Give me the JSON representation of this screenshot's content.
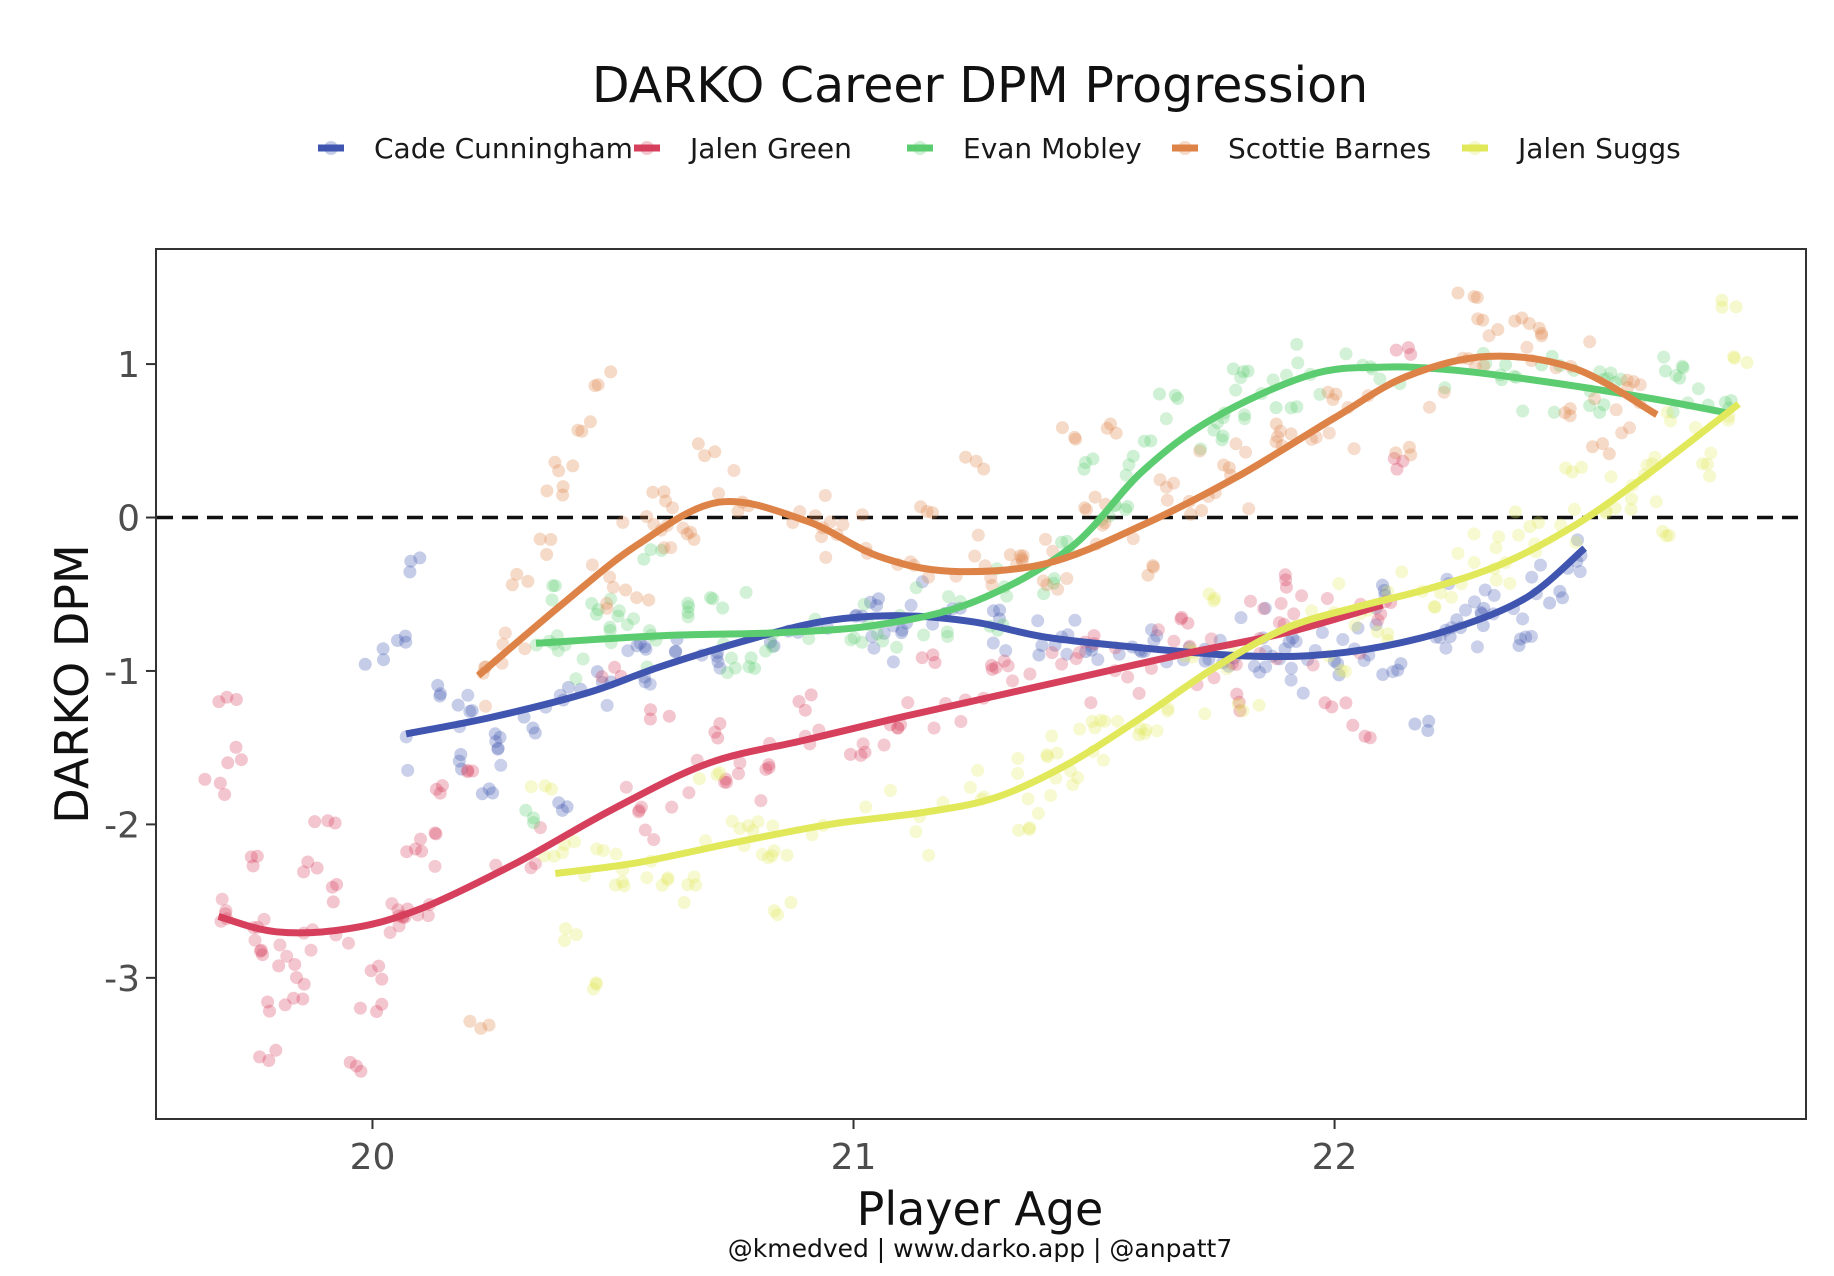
{
  "chart_data": {
    "type": "scatter",
    "title": "DARKO Career DPM Progression",
    "xlabel": "Player Age",
    "ylabel": "DARKO DPM",
    "caption": "@kmedved | www.darko.app | @anpatt7",
    "xlim": [
      19.55,
      22.98
    ],
    "ylim": [
      -3.92,
      1.75
    ],
    "xticks": [
      20,
      21,
      22
    ],
    "xtick_labels": [
      "20",
      "21",
      "22"
    ],
    "yticks": [
      1,
      0,
      -1,
      -2,
      -3
    ],
    "ytick_labels": [
      "1",
      "0",
      "-1",
      "-2",
      "-3"
    ],
    "reference_line": 0,
    "legend_position": "top",
    "series": [
      {
        "name": "Cade Cunningham",
        "color": "#3f55b0",
        "smooth": [
          [
            20.07,
            -1.41
          ],
          [
            20.25,
            -1.3
          ],
          [
            20.45,
            -1.14
          ],
          [
            20.6,
            -0.97
          ],
          [
            20.8,
            -0.78
          ],
          [
            20.95,
            -0.67
          ],
          [
            21.1,
            -0.64
          ],
          [
            21.25,
            -0.68
          ],
          [
            21.4,
            -0.78
          ],
          [
            21.6,
            -0.85
          ],
          [
            21.8,
            -0.9
          ],
          [
            21.95,
            -0.9
          ],
          [
            22.1,
            -0.84
          ],
          [
            22.25,
            -0.72
          ],
          [
            22.4,
            -0.52
          ],
          [
            22.52,
            -0.2
          ]
        ],
        "anchors": [
          [
            20.0,
            -0.9
          ],
          [
            20.07,
            -0.78
          ],
          [
            20.1,
            -0.3
          ],
          [
            20.13,
            -1.15
          ],
          [
            20.17,
            -1.6
          ],
          [
            20.2,
            -1.25
          ],
          [
            20.25,
            -1.75
          ],
          [
            20.28,
            -1.45
          ],
          [
            20.32,
            -1.35
          ],
          [
            20.38,
            -1.85
          ],
          [
            20.42,
            -1.15
          ],
          [
            20.48,
            -1.05
          ],
          [
            20.55,
            -0.88
          ],
          [
            20.62,
            -0.85
          ],
          [
            20.7,
            -0.9
          ],
          [
            20.85,
            -0.78
          ],
          [
            21.0,
            -0.68
          ],
          [
            21.05,
            -0.56
          ],
          [
            21.1,
            -0.72
          ],
          [
            21.2,
            -0.6
          ],
          [
            21.3,
            -0.62
          ],
          [
            21.4,
            -0.85
          ],
          [
            21.5,
            -0.82
          ],
          [
            21.6,
            -0.86
          ],
          [
            21.75,
            -0.9
          ],
          [
            21.9,
            -0.82
          ],
          [
            22.0,
            -0.98
          ],
          [
            22.08,
            -0.45
          ],
          [
            22.12,
            -1.0
          ],
          [
            22.18,
            -1.35
          ],
          [
            22.25,
            -0.72
          ],
          [
            22.3,
            -0.65
          ],
          [
            22.38,
            -0.8
          ],
          [
            22.45,
            -0.5
          ],
          [
            22.5,
            -0.3
          ]
        ]
      },
      {
        "name": "Jalen Green",
        "color": "#d6405c",
        "smooth": [
          [
            19.68,
            -2.6
          ],
          [
            19.8,
            -2.7
          ],
          [
            19.95,
            -2.68
          ],
          [
            20.1,
            -2.55
          ],
          [
            20.3,
            -2.25
          ],
          [
            20.5,
            -1.9
          ],
          [
            20.7,
            -1.6
          ],
          [
            20.9,
            -1.45
          ],
          [
            21.1,
            -1.3
          ],
          [
            21.3,
            -1.16
          ],
          [
            21.5,
            -1.02
          ],
          [
            21.7,
            -0.88
          ],
          [
            21.9,
            -0.75
          ],
          [
            22.1,
            -0.57
          ]
        ],
        "anchors": [
          [
            19.67,
            -1.75
          ],
          [
            19.7,
            -1.2
          ],
          [
            19.72,
            -1.55
          ],
          [
            19.74,
            -2.25
          ],
          [
            19.76,
            -2.85
          ],
          [
            19.78,
            -3.5
          ],
          [
            19.8,
            -3.2
          ],
          [
            19.83,
            -2.95
          ],
          [
            19.86,
            -3.1
          ],
          [
            19.88,
            -2.3
          ],
          [
            19.9,
            -1.95
          ],
          [
            19.93,
            -2.45
          ],
          [
            19.96,
            -3.6
          ],
          [
            20.0,
            -3.2
          ],
          [
            20.02,
            -2.95
          ],
          [
            20.05,
            -2.6
          ],
          [
            20.08,
            -2.2
          ],
          [
            20.12,
            -2.1
          ],
          [
            20.15,
            -1.8
          ],
          [
            20.2,
            -1.6
          ],
          [
            20.5,
            -1.0
          ],
          [
            20.6,
            -1.3
          ],
          [
            20.7,
            -1.4
          ],
          [
            20.8,
            -1.6
          ],
          [
            20.9,
            -1.2
          ],
          [
            21.0,
            -1.55
          ],
          [
            21.1,
            -1.35
          ],
          [
            21.15,
            -0.9
          ],
          [
            21.3,
            -1.0
          ],
          [
            21.5,
            -0.8
          ],
          [
            21.7,
            -0.7
          ],
          [
            21.8,
            -1.2
          ],
          [
            21.9,
            -0.4
          ],
          [
            22.0,
            -1.2
          ],
          [
            22.05,
            -1.4
          ],
          [
            22.1,
            -0.6
          ],
          [
            22.13,
            0.35
          ],
          [
            22.15,
            1.05
          ]
        ]
      },
      {
        "name": "Evan Mobley",
        "color": "#5ccc70",
        "smooth": [
          [
            20.34,
            -0.82
          ],
          [
            20.6,
            -0.77
          ],
          [
            20.85,
            -0.75
          ],
          [
            21.05,
            -0.7
          ],
          [
            21.25,
            -0.55
          ],
          [
            21.45,
            -0.2
          ],
          [
            21.6,
            0.3
          ],
          [
            21.75,
            0.65
          ],
          [
            21.95,
            0.93
          ],
          [
            22.1,
            0.98
          ],
          [
            22.25,
            0.96
          ],
          [
            22.45,
            0.88
          ],
          [
            22.65,
            0.78
          ],
          [
            22.82,
            0.68
          ]
        ],
        "anchors": [
          [
            20.33,
            -1.95
          ],
          [
            20.38,
            -0.5
          ],
          [
            20.45,
            -0.6
          ],
          [
            20.5,
            -0.7
          ],
          [
            20.58,
            -0.25
          ],
          [
            20.65,
            -0.6
          ],
          [
            20.72,
            -0.55
          ],
          [
            20.78,
            -0.95
          ],
          [
            21.3,
            -0.75
          ],
          [
            21.4,
            -0.45
          ],
          [
            21.45,
            -0.2
          ],
          [
            21.5,
            0.35
          ],
          [
            21.55,
            0.05
          ],
          [
            21.6,
            0.45
          ],
          [
            21.65,
            0.75
          ],
          [
            21.75,
            0.55
          ],
          [
            21.8,
            0.95
          ],
          [
            21.9,
            0.72
          ],
          [
            22.35,
            0.95
          ],
          [
            22.45,
            1.05
          ],
          [
            22.55,
            0.72
          ],
          [
            22.7,
            0.95
          ],
          [
            22.8,
            0.72
          ]
        ]
      },
      {
        "name": "Scottie Barnes",
        "color": "#de8348",
        "smooth": [
          [
            20.22,
            -1.03
          ],
          [
            20.4,
            -0.55
          ],
          [
            20.55,
            -0.18
          ],
          [
            20.72,
            0.1
          ],
          [
            20.9,
            -0.02
          ],
          [
            21.05,
            -0.25
          ],
          [
            21.2,
            -0.35
          ],
          [
            21.4,
            -0.3
          ],
          [
            21.6,
            -0.05
          ],
          [
            21.8,
            0.27
          ],
          [
            22.0,
            0.65
          ],
          [
            22.15,
            0.92
          ],
          [
            22.32,
            1.05
          ],
          [
            22.5,
            0.97
          ],
          [
            22.67,
            0.67
          ]
        ],
        "anchors": [
          [
            20.22,
            -3.3
          ],
          [
            20.25,
            -1.0
          ],
          [
            20.3,
            -0.4
          ],
          [
            20.35,
            -0.2
          ],
          [
            20.38,
            0.15
          ],
          [
            20.4,
            0.35
          ],
          [
            20.45,
            0.6
          ],
          [
            20.48,
            0.9
          ],
          [
            20.55,
            -0.5
          ],
          [
            20.6,
            0.15
          ],
          [
            20.65,
            -0.1
          ],
          [
            20.7,
            0.45
          ],
          [
            20.78,
            0.1
          ],
          [
            21.15,
            0.05
          ],
          [
            21.25,
            0.35
          ],
          [
            21.35,
            -0.25
          ],
          [
            21.45,
            0.55
          ],
          [
            21.5,
            0.1
          ],
          [
            21.55,
            0.6
          ],
          [
            21.62,
            -0.35
          ],
          [
            21.7,
            0.05
          ],
          [
            21.78,
            0.3
          ],
          [
            21.9,
            0.55
          ],
          [
            22.0,
            0.8
          ],
          [
            22.15,
            0.45
          ],
          [
            22.28,
            1.45
          ],
          [
            22.32,
            1.25
          ],
          [
            22.38,
            1.3
          ],
          [
            22.45,
            1.2
          ],
          [
            22.5,
            0.65
          ],
          [
            22.55,
            0.45
          ],
          [
            22.62,
            0.88
          ]
        ]
      },
      {
        "name": "Jalen Suggs",
        "color": "#e1e85a",
        "smooth": [
          [
            20.38,
            -2.32
          ],
          [
            20.55,
            -2.25
          ],
          [
            20.75,
            -2.12
          ],
          [
            20.95,
            -2.0
          ],
          [
            21.15,
            -1.92
          ],
          [
            21.3,
            -1.82
          ],
          [
            21.45,
            -1.6
          ],
          [
            21.6,
            -1.3
          ],
          [
            21.75,
            -0.98
          ],
          [
            21.9,
            -0.72
          ],
          [
            22.05,
            -0.58
          ],
          [
            22.2,
            -0.46
          ],
          [
            22.35,
            -0.3
          ],
          [
            22.5,
            -0.05
          ],
          [
            22.65,
            0.28
          ],
          [
            22.84,
            0.74
          ]
        ],
        "anchors": [
          [
            20.35,
            -1.75
          ],
          [
            20.38,
            -2.15
          ],
          [
            20.42,
            -2.7
          ],
          [
            20.45,
            -3.05
          ],
          [
            20.5,
            -2.35
          ],
          [
            20.6,
            -2.35
          ],
          [
            20.65,
            -2.45
          ],
          [
            20.7,
            -1.65
          ],
          [
            20.78,
            -2.05
          ],
          [
            20.85,
            -2.15
          ],
          [
            20.85,
            -2.55
          ],
          [
            21.35,
            -2.02
          ],
          [
            21.4,
            -1.5
          ],
          [
            21.5,
            -1.35
          ],
          [
            21.6,
            -1.4
          ],
          [
            21.7,
            -0.9
          ],
          [
            21.75,
            -0.55
          ],
          [
            21.82,
            -1.22
          ],
          [
            22.0,
            -0.95
          ],
          [
            22.1,
            -0.75
          ],
          [
            22.2,
            -0.55
          ],
          [
            22.4,
            0.0
          ],
          [
            22.5,
            0.35
          ],
          [
            22.6,
            0.1
          ],
          [
            22.7,
            -0.15
          ],
          [
            22.78,
            0.3
          ],
          [
            22.82,
            1.4
          ],
          [
            22.85,
            1.05
          ]
        ]
      }
    ]
  }
}
